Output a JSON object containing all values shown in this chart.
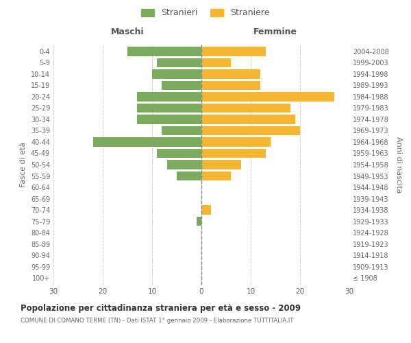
{
  "age_groups": [
    "100+",
    "95-99",
    "90-94",
    "85-89",
    "80-84",
    "75-79",
    "70-74",
    "65-69",
    "60-64",
    "55-59",
    "50-54",
    "45-49",
    "40-44",
    "35-39",
    "30-34",
    "25-29",
    "20-24",
    "15-19",
    "10-14",
    "5-9",
    "0-4"
  ],
  "birth_years": [
    "≤ 1908",
    "1909-1913",
    "1914-1918",
    "1919-1923",
    "1924-1928",
    "1929-1933",
    "1934-1938",
    "1939-1943",
    "1944-1948",
    "1949-1953",
    "1954-1958",
    "1959-1963",
    "1964-1968",
    "1969-1973",
    "1974-1978",
    "1979-1983",
    "1984-1988",
    "1989-1993",
    "1994-1998",
    "1999-2003",
    "2004-2008"
  ],
  "males": [
    0,
    0,
    0,
    0,
    0,
    1,
    0,
    0,
    0,
    5,
    7,
    9,
    22,
    8,
    13,
    13,
    13,
    8,
    10,
    9,
    15
  ],
  "females": [
    0,
    0,
    0,
    0,
    0,
    0,
    2,
    0,
    0,
    6,
    8,
    13,
    14,
    20,
    19,
    18,
    27,
    12,
    12,
    6,
    13
  ],
  "male_color": "#7aab5e",
  "female_color": "#f5b731",
  "dashed_line_color": "#7aab5e",
  "background_color": "#ffffff",
  "grid_color": "#cccccc",
  "title": "Popolazione per cittadinanza straniera per età e sesso - 2009",
  "subtitle": "COMUNE DI COMANO TERME (TN) - Dati ISTAT 1° gennaio 2009 - Elaborazione TUTTITALIA.IT",
  "xlabel_left": "Maschi",
  "xlabel_right": "Femmine",
  "ylabel_left": "Fasce di età",
  "ylabel_right": "Anni di nascita",
  "legend_stranieri": "Stranieri",
  "legend_straniere": "Straniere",
  "xlim": 30,
  "bar_height": 0.8
}
